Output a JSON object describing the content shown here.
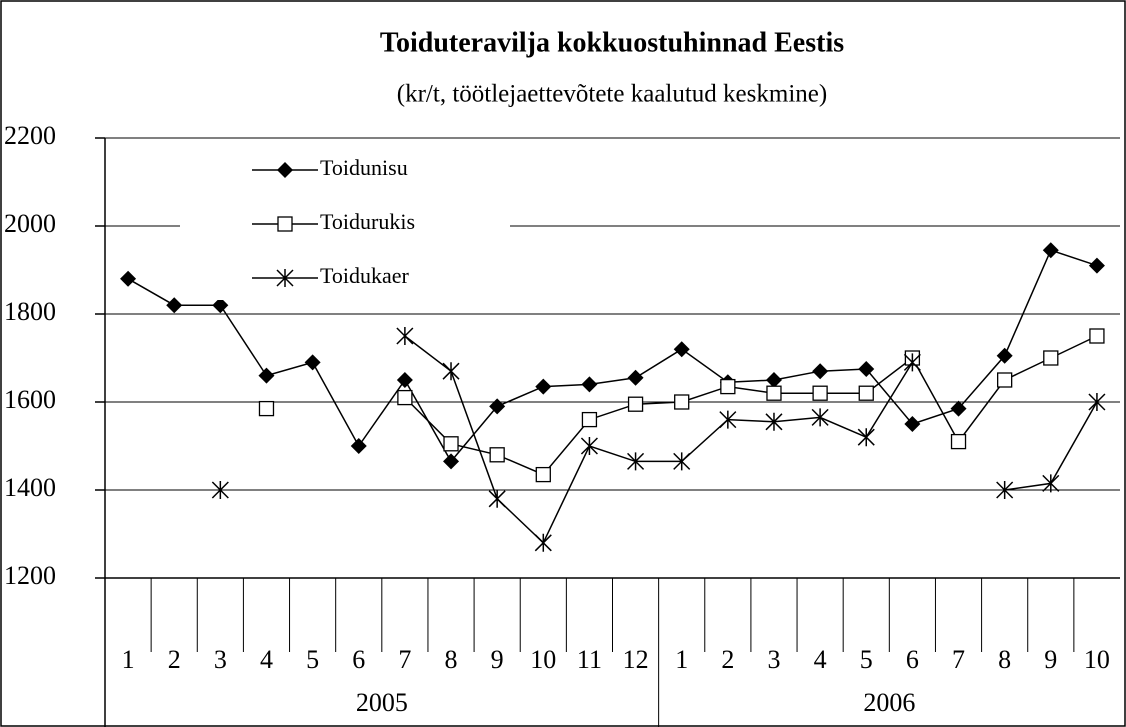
{
  "chart_data": {
    "type": "line",
    "title": "Toiduteravilja kokkuostuhinnad Eestis",
    "subtitle": "(kr/t, töötlejaettevõtete kaalutud keskmine)",
    "categories": [
      "1",
      "2",
      "3",
      "4",
      "5",
      "6",
      "7",
      "8",
      "9",
      "10",
      "11",
      "12",
      "1",
      "2",
      "3",
      "4",
      "5",
      "6",
      "7",
      "8",
      "9",
      "10"
    ],
    "year_groups": [
      {
        "label": "2005",
        "span": 12
      },
      {
        "label": "2006",
        "span": 10
      }
    ],
    "series": [
      {
        "name": "Toidunisu",
        "color": "#000000",
        "marker": "diamond",
        "values": [
          1880,
          1820,
          1820,
          1660,
          1690,
          1500,
          1650,
          1465,
          1590,
          1635,
          1640,
          1655,
          1720,
          1645,
          1650,
          1670,
          1675,
          1550,
          1585,
          1705,
          1945,
          1910
        ]
      },
      {
        "name": "Toidurukis",
        "color": "#000000",
        "marker": "square",
        "values": [
          null,
          null,
          null,
          1585,
          null,
          null,
          1610,
          1505,
          1480,
          1435,
          1560,
          1595,
          1600,
          1635,
          1620,
          1620,
          1620,
          1700,
          1510,
          1650,
          1700,
          1750
        ]
      },
      {
        "name": "Toidukaer",
        "color": "#000000",
        "marker": "star",
        "values": [
          null,
          null,
          1400,
          null,
          null,
          null,
          1750,
          1670,
          1380,
          1280,
          1500,
          1465,
          1465,
          1560,
          1555,
          1565,
          1520,
          1690,
          null,
          1400,
          1415,
          1600
        ]
      }
    ],
    "ylim": [
      1200,
      2200
    ],
    "yticks": [
      1200,
      1400,
      1600,
      1800,
      2000,
      2200
    ],
    "grid": true
  }
}
